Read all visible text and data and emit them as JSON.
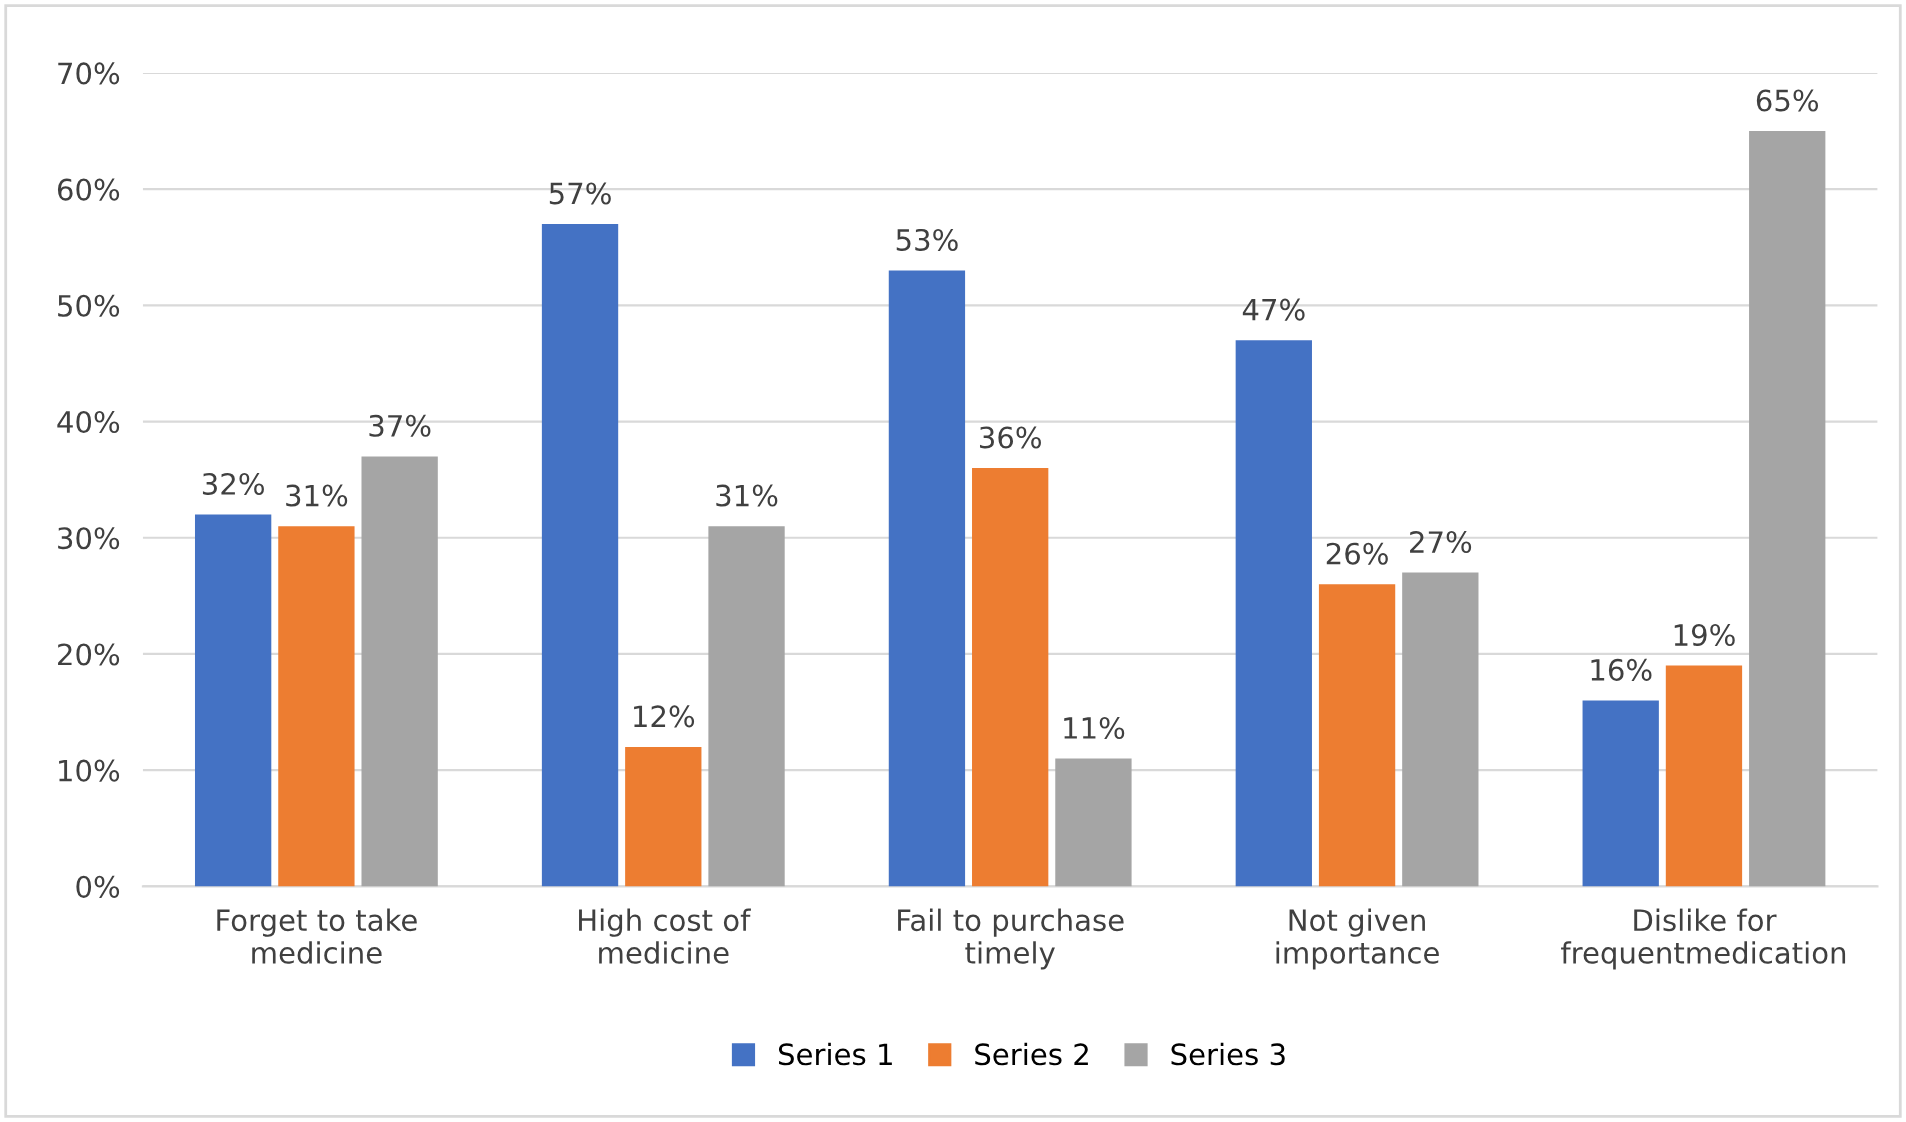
{
  "chart_data": {
    "type": "bar",
    "categories": [
      "Forget to take\nmedicine",
      "High cost of\nmedicine",
      "Fail to purchase\ntimely",
      "Not given\nimportance",
      "Dislike for\nfrequentmedication"
    ],
    "series": [
      {
        "name": "Series 1",
        "color": "#4472c4",
        "values": [
          32,
          57,
          53,
          47,
          16
        ],
        "value_labels": [
          "32%",
          "57%",
          "53%",
          "47%",
          "16%"
        ]
      },
      {
        "name": "Series 2",
        "color": "#ed7d31",
        "values": [
          31,
          12,
          36,
          26,
          19
        ],
        "value_labels": [
          "31%",
          "12%",
          "36%",
          "26%",
          "19%"
        ]
      },
      {
        "name": "Series 3",
        "color": "#a5a5a5",
        "values": [
          37,
          31,
          11,
          27,
          65
        ],
        "value_labels": [
          "37%",
          "31%",
          "11%",
          "27%",
          "65%"
        ]
      }
    ],
    "ylim": [
      0,
      70
    ],
    "yticks": [
      {
        "value": 0,
        "label": "0%"
      },
      {
        "value": 10,
        "label": "10%"
      },
      {
        "value": 20,
        "label": "20%"
      },
      {
        "value": 30,
        "label": "30%"
      },
      {
        "value": 40,
        "label": "40%"
      },
      {
        "value": 50,
        "label": "50%"
      },
      {
        "value": 60,
        "label": "60%"
      },
      {
        "value": 70,
        "label": "70%"
      }
    ],
    "grid": "y",
    "legend": "bottom"
  }
}
